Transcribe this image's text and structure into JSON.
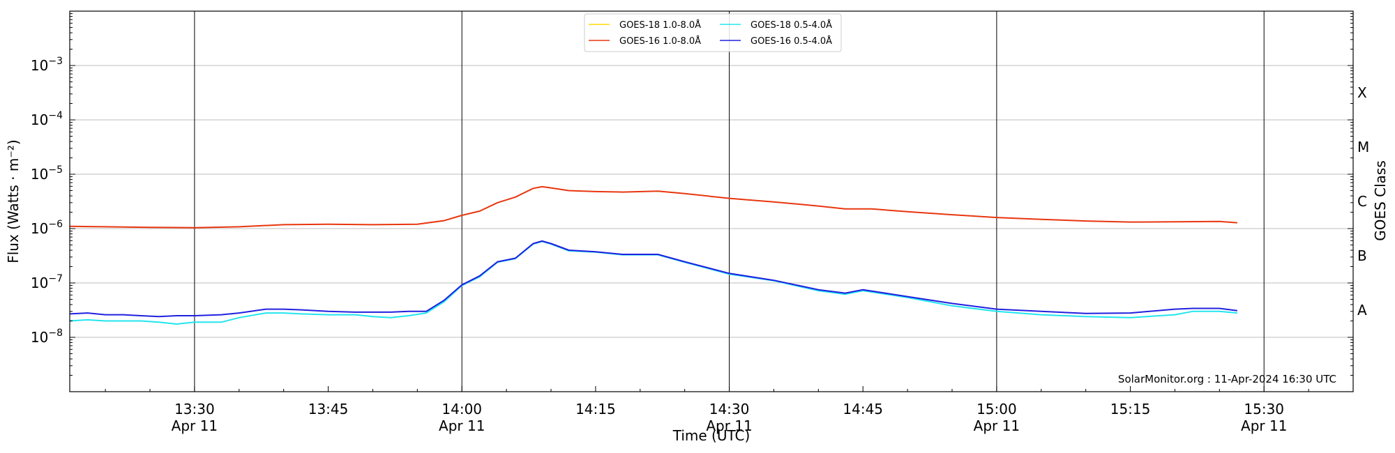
{
  "chart_data": {
    "type": "line",
    "xlabel": "Time (UTC)",
    "ylabel": "Flux (Watts · m⁻²)",
    "y2label": "GOES Class",
    "yscale": "log",
    "ylim": [
      1e-09,
      0.01
    ],
    "xlim": [
      "13:16",
      "15:40"
    ],
    "x_ticks": [
      {
        "t": "13:30",
        "label": "13:30",
        "sub": "Apr 11"
      },
      {
        "t": "13:45",
        "label": "13:45",
        "sub": ""
      },
      {
        "t": "14:00",
        "label": "14:00",
        "sub": "Apr 11"
      },
      {
        "t": "14:15",
        "label": "14:15",
        "sub": ""
      },
      {
        "t": "14:30",
        "label": "14:30",
        "sub": "Apr 11"
      },
      {
        "t": "14:45",
        "label": "14:45",
        "sub": ""
      },
      {
        "t": "15:00",
        "label": "15:00",
        "sub": "Apr 11"
      },
      {
        "t": "15:15",
        "label": "15:15",
        "sub": ""
      },
      {
        "t": "15:30",
        "label": "15:30",
        "sub": "Apr 11"
      }
    ],
    "vertical_lines": [
      "13:30",
      "14:00",
      "14:30",
      "15:00",
      "15:30"
    ],
    "y_ticks": [
      {
        "value": 1e-08,
        "base": "10",
        "exp": "−8"
      },
      {
        "value": 1e-07,
        "base": "10",
        "exp": "−7"
      },
      {
        "value": 1e-06,
        "base": "10",
        "exp": "−6"
      },
      {
        "value": 1e-05,
        "base": "10",
        "exp": "−5"
      },
      {
        "value": 0.0001,
        "base": "10",
        "exp": "−4"
      },
      {
        "value": 0.001,
        "base": "10",
        "exp": "−3"
      }
    ],
    "goes_classes": [
      {
        "label": "A",
        "value": 3.16e-08
      },
      {
        "label": "B",
        "value": 3.16e-07
      },
      {
        "label": "C",
        "value": 3.16e-06
      },
      {
        "label": "M",
        "value": 3.16e-05
      },
      {
        "label": "X",
        "value": 0.000316
      }
    ],
    "grid": "horizontal at decades",
    "legend": {
      "placement": "top-center",
      "columns": 2
    },
    "watermark": "SolarMonitor.org : 11-Apr-2024 16:30 UTC",
    "series": [
      {
        "name": "GOES-18 1.0-8.0Å",
        "color": "#ffd700",
        "points": []
      },
      {
        "name": "GOES-16 1.0-8.0Å",
        "color": "#e8360f",
        "points": [
          [
            "13:16",
            1.1e-06
          ],
          [
            "13:20",
            1.08e-06
          ],
          [
            "13:25",
            1.05e-06
          ],
          [
            "13:30",
            1.04e-06
          ],
          [
            "13:35",
            1.08e-06
          ],
          [
            "13:40",
            1.18e-06
          ],
          [
            "13:45",
            1.2e-06
          ],
          [
            "13:50",
            1.18e-06
          ],
          [
            "13:55",
            1.2e-06
          ],
          [
            "13:58",
            1.4e-06
          ],
          [
            "14:00",
            1.75e-06
          ],
          [
            "14:02",
            2.1e-06
          ],
          [
            "14:04",
            3e-06
          ],
          [
            "14:06",
            3.8e-06
          ],
          [
            "14:08",
            5.5e-06
          ],
          [
            "14:09",
            5.9e-06
          ],
          [
            "14:10",
            5.6e-06
          ],
          [
            "14:12",
            5e-06
          ],
          [
            "14:15",
            4.8e-06
          ],
          [
            "14:18",
            4.7e-06
          ],
          [
            "14:22",
            4.9e-06
          ],
          [
            "14:25",
            4.4e-06
          ],
          [
            "14:30",
            3.6e-06
          ],
          [
            "14:35",
            3.1e-06
          ],
          [
            "14:40",
            2.6e-06
          ],
          [
            "14:43",
            2.3e-06
          ],
          [
            "14:46",
            2.3e-06
          ],
          [
            "14:50",
            2.05e-06
          ],
          [
            "14:55",
            1.8e-06
          ],
          [
            "15:00",
            1.6e-06
          ],
          [
            "15:05",
            1.48e-06
          ],
          [
            "15:10",
            1.38e-06
          ],
          [
            "15:15",
            1.32e-06
          ],
          [
            "15:20",
            1.33e-06
          ],
          [
            "15:25",
            1.35e-06
          ],
          [
            "15:27",
            1.28e-06
          ]
        ]
      },
      {
        "name": "GOES-18 0.5-4.0Å",
        "color": "#22e5ee",
        "points": [
          [
            "13:16",
            2e-08
          ],
          [
            "13:18",
            2.1e-08
          ],
          [
            "13:20",
            2e-08
          ],
          [
            "13:22",
            2e-08
          ],
          [
            "13:24",
            2e-08
          ],
          [
            "13:26",
            1.9e-08
          ],
          [
            "13:28",
            1.75e-08
          ],
          [
            "13:30",
            1.9e-08
          ],
          [
            "13:33",
            1.9e-08
          ],
          [
            "13:35",
            2.3e-08
          ],
          [
            "13:38",
            2.8e-08
          ],
          [
            "13:40",
            2.8e-08
          ],
          [
            "13:42",
            2.7e-08
          ],
          [
            "13:45",
            2.6e-08
          ],
          [
            "13:48",
            2.6e-08
          ],
          [
            "13:50",
            2.4e-08
          ],
          [
            "13:52",
            2.3e-08
          ],
          [
            "13:54",
            2.5e-08
          ],
          [
            "13:56",
            2.8e-08
          ],
          [
            "13:58",
            4.5e-08
          ],
          [
            "14:00",
            9e-08
          ],
          [
            "14:02",
            1.3e-07
          ],
          [
            "14:04",
            2.4e-07
          ],
          [
            "14:06",
            2.8e-07
          ],
          [
            "14:08",
            5.2e-07
          ],
          [
            "14:09",
            5.8e-07
          ],
          [
            "14:10",
            5.2e-07
          ],
          [
            "14:12",
            3.9e-07
          ],
          [
            "14:15",
            3.7e-07
          ],
          [
            "14:18",
            3.3e-07
          ],
          [
            "14:22",
            3.3e-07
          ],
          [
            "14:25",
            2.4e-07
          ],
          [
            "14:30",
            1.45e-07
          ],
          [
            "14:35",
            1.1e-07
          ],
          [
            "14:40",
            7.2e-08
          ],
          [
            "14:43",
            6.2e-08
          ],
          [
            "14:45",
            7.2e-08
          ],
          [
            "14:50",
            5.4e-08
          ],
          [
            "14:55",
            3.8e-08
          ],
          [
            "15:00",
            3e-08
          ],
          [
            "15:05",
            2.6e-08
          ],
          [
            "15:10",
            2.4e-08
          ],
          [
            "15:15",
            2.3e-08
          ],
          [
            "15:20",
            2.6e-08
          ],
          [
            "15:22",
            3e-08
          ],
          [
            "15:25",
            3e-08
          ],
          [
            "15:27",
            2.8e-08
          ]
        ]
      },
      {
        "name": "GOES-16 0.5-4.0Å",
        "color": "#2020e0",
        "points": [
          [
            "13:16",
            2.7e-08
          ],
          [
            "13:18",
            2.8e-08
          ],
          [
            "13:20",
            2.6e-08
          ],
          [
            "13:22",
            2.6e-08
          ],
          [
            "13:24",
            2.5e-08
          ],
          [
            "13:26",
            2.4e-08
          ],
          [
            "13:28",
            2.5e-08
          ],
          [
            "13:30",
            2.5e-08
          ],
          [
            "13:33",
            2.6e-08
          ],
          [
            "13:35",
            2.8e-08
          ],
          [
            "13:38",
            3.3e-08
          ],
          [
            "13:40",
            3.3e-08
          ],
          [
            "13:42",
            3.2e-08
          ],
          [
            "13:45",
            3e-08
          ],
          [
            "13:48",
            2.9e-08
          ],
          [
            "13:50",
            2.9e-08
          ],
          [
            "13:52",
            2.9e-08
          ],
          [
            "13:54",
            3e-08
          ],
          [
            "13:56",
            3e-08
          ],
          [
            "13:58",
            4.8e-08
          ],
          [
            "14:00",
            9.2e-08
          ],
          [
            "14:02",
            1.35e-07
          ],
          [
            "14:04",
            2.45e-07
          ],
          [
            "14:06",
            2.85e-07
          ],
          [
            "14:08",
            5.3e-07
          ],
          [
            "14:09",
            5.9e-07
          ],
          [
            "14:10",
            5.3e-07
          ],
          [
            "14:12",
            4e-07
          ],
          [
            "14:15",
            3.75e-07
          ],
          [
            "14:18",
            3.35e-07
          ],
          [
            "14:22",
            3.35e-07
          ],
          [
            "14:25",
            2.45e-07
          ],
          [
            "14:30",
            1.5e-07
          ],
          [
            "14:35",
            1.12e-07
          ],
          [
            "14:40",
            7.5e-08
          ],
          [
            "14:43",
            6.5e-08
          ],
          [
            "14:45",
            7.5e-08
          ],
          [
            "14:50",
            5.6e-08
          ],
          [
            "14:55",
            4.2e-08
          ],
          [
            "15:00",
            3.3e-08
          ],
          [
            "15:05",
            3e-08
          ],
          [
            "15:10",
            2.75e-08
          ],
          [
            "15:15",
            2.8e-08
          ],
          [
            "15:20",
            3.3e-08
          ],
          [
            "15:22",
            3.4e-08
          ],
          [
            "15:25",
            3.4e-08
          ],
          [
            "15:27",
            3.1e-08
          ]
        ]
      }
    ]
  }
}
